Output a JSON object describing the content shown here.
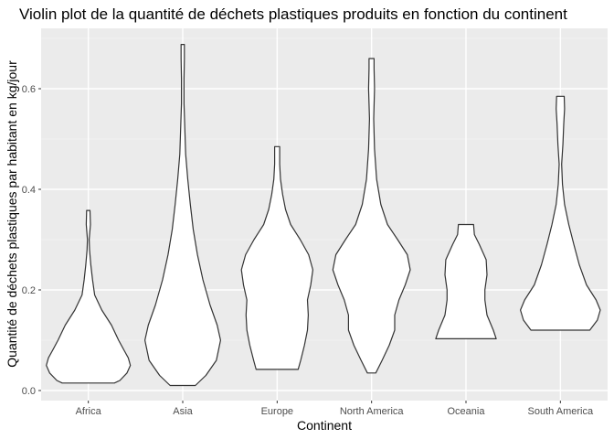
{
  "chart_data": {
    "type": "violin",
    "title": "Violin plot de la quantité de déchets plastiques produits en fonction du continent",
    "xlabel": "Continent",
    "ylabel": "Quantité de déchets plastiques par habitant en kg/jour",
    "categories": [
      "Africa",
      "Asia",
      "Europe",
      "North America",
      "Oceania",
      "South America"
    ],
    "ylim": [
      -0.02,
      0.72
    ],
    "yticks": [
      0.0,
      0.2,
      0.4,
      0.6
    ],
    "ytick_labels": [
      "0.0",
      "0.2",
      "0.4",
      "0.6"
    ],
    "grid": true,
    "legend": "none",
    "violins": [
      {
        "category": "Africa",
        "min": 0.015,
        "max": 0.358,
        "profile": [
          [
            0.015,
            0.62
          ],
          [
            0.02,
            0.75
          ],
          [
            0.035,
            0.92
          ],
          [
            0.05,
            1.0
          ],
          [
            0.065,
            0.95
          ],
          [
            0.08,
            0.85
          ],
          [
            0.1,
            0.72
          ],
          [
            0.13,
            0.55
          ],
          [
            0.16,
            0.32
          ],
          [
            0.19,
            0.15
          ],
          [
            0.22,
            0.1
          ],
          [
            0.25,
            0.06
          ],
          [
            0.28,
            0.03
          ],
          [
            0.3,
            0.02
          ],
          [
            0.33,
            0.05
          ],
          [
            0.358,
            0.04
          ]
        ]
      },
      {
        "category": "Asia",
        "min": 0.01,
        "max": 0.688,
        "profile": [
          [
            0.01,
            0.3
          ],
          [
            0.03,
            0.55
          ],
          [
            0.06,
            0.8
          ],
          [
            0.1,
            0.9
          ],
          [
            0.13,
            0.82
          ],
          [
            0.17,
            0.65
          ],
          [
            0.22,
            0.48
          ],
          [
            0.27,
            0.35
          ],
          [
            0.32,
            0.25
          ],
          [
            0.37,
            0.18
          ],
          [
            0.42,
            0.12
          ],
          [
            0.47,
            0.07
          ],
          [
            0.52,
            0.05
          ],
          [
            0.57,
            0.03
          ],
          [
            0.62,
            0.03
          ],
          [
            0.66,
            0.04
          ],
          [
            0.688,
            0.04
          ]
        ]
      },
      {
        "category": "Europe",
        "min": 0.042,
        "max": 0.485,
        "profile": [
          [
            0.042,
            0.5
          ],
          [
            0.06,
            0.56
          ],
          [
            0.09,
            0.65
          ],
          [
            0.12,
            0.72
          ],
          [
            0.15,
            0.74
          ],
          [
            0.18,
            0.72
          ],
          [
            0.21,
            0.8
          ],
          [
            0.24,
            0.85
          ],
          [
            0.27,
            0.75
          ],
          [
            0.3,
            0.55
          ],
          [
            0.33,
            0.32
          ],
          [
            0.36,
            0.2
          ],
          [
            0.39,
            0.13
          ],
          [
            0.42,
            0.08
          ],
          [
            0.45,
            0.06
          ],
          [
            0.485,
            0.06
          ]
        ]
      },
      {
        "category": "North America",
        "min": 0.035,
        "max": 0.66,
        "profile": [
          [
            0.035,
            0.1
          ],
          [
            0.06,
            0.25
          ],
          [
            0.09,
            0.42
          ],
          [
            0.12,
            0.55
          ],
          [
            0.15,
            0.55
          ],
          [
            0.18,
            0.65
          ],
          [
            0.21,
            0.8
          ],
          [
            0.24,
            0.92
          ],
          [
            0.27,
            0.85
          ],
          [
            0.3,
            0.62
          ],
          [
            0.33,
            0.38
          ],
          [
            0.37,
            0.22
          ],
          [
            0.42,
            0.12
          ],
          [
            0.48,
            0.07
          ],
          [
            0.54,
            0.05
          ],
          [
            0.6,
            0.07
          ],
          [
            0.64,
            0.06
          ],
          [
            0.66,
            0.06
          ]
        ]
      },
      {
        "category": "Oceania",
        "min": 0.103,
        "max": 0.33,
        "profile": [
          [
            0.103,
            0.72
          ],
          [
            0.12,
            0.65
          ],
          [
            0.15,
            0.5
          ],
          [
            0.18,
            0.45
          ],
          [
            0.2,
            0.45
          ],
          [
            0.23,
            0.5
          ],
          [
            0.26,
            0.48
          ],
          [
            0.29,
            0.32
          ],
          [
            0.31,
            0.2
          ],
          [
            0.33,
            0.18
          ]
        ]
      },
      {
        "category": "South America",
        "min": 0.12,
        "max": 0.585,
        "profile": [
          [
            0.12,
            0.7
          ],
          [
            0.14,
            0.88
          ],
          [
            0.16,
            0.95
          ],
          [
            0.18,
            0.85
          ],
          [
            0.21,
            0.62
          ],
          [
            0.25,
            0.45
          ],
          [
            0.29,
            0.32
          ],
          [
            0.33,
            0.2
          ],
          [
            0.37,
            0.1
          ],
          [
            0.41,
            0.05
          ],
          [
            0.45,
            0.03
          ],
          [
            0.49,
            0.06
          ],
          [
            0.53,
            0.08
          ],
          [
            0.56,
            0.1
          ],
          [
            0.585,
            0.09
          ]
        ]
      }
    ]
  }
}
